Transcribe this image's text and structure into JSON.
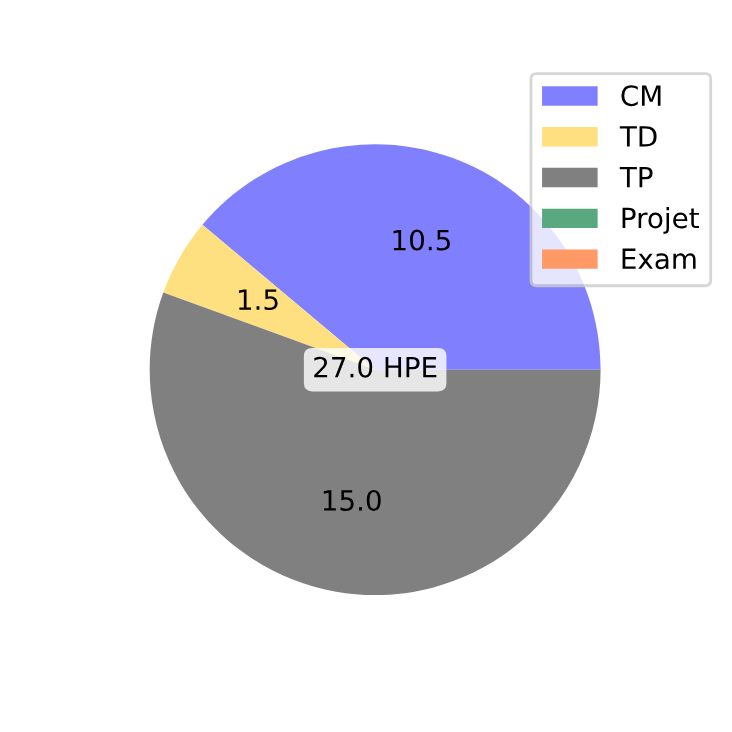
{
  "chart_data": {
    "type": "pie",
    "categories": [
      "CM",
      "TD",
      "TP",
      "Projet",
      "Exam"
    ],
    "values": [
      10.5,
      1.5,
      15.0,
      0,
      0
    ],
    "colors": [
      "#8080ff",
      "#ffe080",
      "#808080",
      "#5aa87f",
      "#ff9966"
    ],
    "value_labels": [
      "10.5",
      "1.5",
      "15.0",
      null,
      null
    ],
    "annotations": [
      "27.0 HPE"
    ],
    "legend": "top right"
  }
}
